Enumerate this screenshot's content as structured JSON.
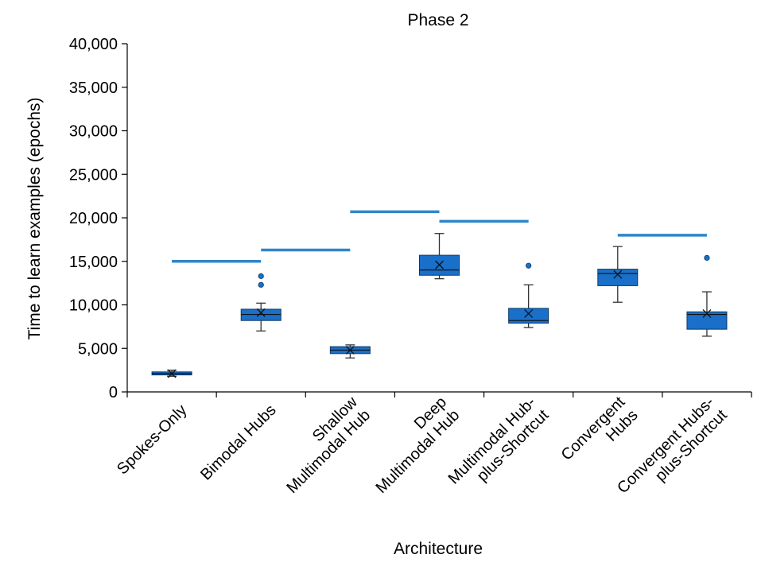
{
  "chart_data": {
    "type": "box",
    "title": "Phase 2",
    "xlabel": "Architecture",
    "ylabel": "Time to learn examples (epochs)",
    "ylim": [
      0,
      40000
    ],
    "yticks": [
      0,
      5000,
      10000,
      15000,
      20000,
      25000,
      30000,
      35000,
      40000
    ],
    "ytick_labels": [
      "0",
      "5,000",
      "10,000",
      "15,000",
      "20,000",
      "25,000",
      "30,000",
      "35,000",
      "40,000"
    ],
    "categories": [
      [
        "Spokes-Only"
      ],
      [
        "Bimodal Hubs"
      ],
      [
        "Shallow",
        "Multimodal Hub"
      ],
      [
        "Deep",
        "Multimodal Hub"
      ],
      [
        "Multimodal Hub-",
        "plus-Shortcut"
      ],
      [
        "Convergent",
        "Hubs"
      ],
      [
        "Convergent Hubs-",
        "plus-Shortcut"
      ]
    ],
    "boxes": [
      {
        "min": 1800,
        "q1": 1950,
        "median": 2100,
        "q3": 2300,
        "max": 2500,
        "mean": 2100,
        "outliers": []
      },
      {
        "min": 7000,
        "q1": 8200,
        "median": 8900,
        "q3": 9500,
        "max": 10200,
        "mean": 9100,
        "outliers": [
          12300,
          13300
        ]
      },
      {
        "min": 3900,
        "q1": 4400,
        "median": 4800,
        "q3": 5200,
        "max": 5400,
        "mean": 4800,
        "outliers": []
      },
      {
        "min": 13000,
        "q1": 13400,
        "median": 14000,
        "q3": 15700,
        "max": 18200,
        "mean": 14600,
        "outliers": []
      },
      {
        "min": 7400,
        "q1": 7900,
        "median": 8200,
        "q3": 9600,
        "max": 12300,
        "mean": 9000,
        "outliers": [
          14500
        ]
      },
      {
        "min": 10300,
        "q1": 12200,
        "median": 13600,
        "q3": 14100,
        "max": 16700,
        "mean": 13500,
        "outliers": []
      },
      {
        "min": 6400,
        "q1": 7200,
        "median": 8900,
        "q3": 9200,
        "max": 11500,
        "mean": 9000,
        "outliers": [
          15400
        ]
      }
    ],
    "reference_lines": [
      {
        "from": 0,
        "to": 1,
        "y": 15000
      },
      {
        "from": 1,
        "to": 2,
        "y": 16300
      },
      {
        "from": 2,
        "to": 3,
        "y": 20700
      },
      {
        "from": 3,
        "to": 4,
        "y": 19600
      },
      {
        "from": 5,
        "to": 6,
        "y": 18000
      }
    ],
    "grid": false,
    "legend": "none",
    "colors": {
      "box_fill": "#1a6fc9",
      "box_stroke": "#0d3a66",
      "ref_line": "#2f86c9",
      "axis": "#000000"
    }
  }
}
